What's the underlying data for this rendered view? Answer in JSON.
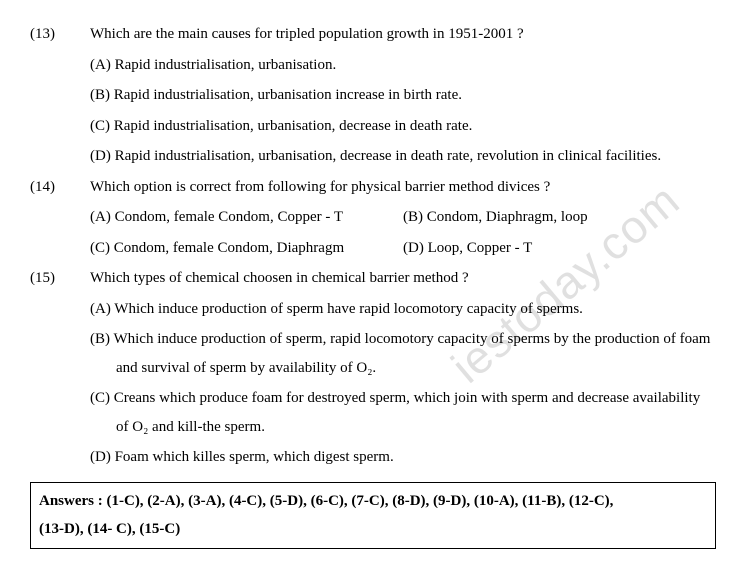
{
  "q13": {
    "num": "(13)",
    "text": "Which are the main causes for tripled population growth in 1951-2001 ?",
    "A": "(A) Rapid industrialisation, urbanisation.",
    "B": "(B) Rapid industrialisation, urbanisation increase in birth rate.",
    "C": "(C) Rapid industrialisation, urbanisation, decrease in death rate.",
    "D": "(D) Rapid industrialisation, urbanisation, decrease in death rate, revolution in clinical facilities."
  },
  "q14": {
    "num": "(14)",
    "text": "Which option is correct from following for physical barrier method divices ?",
    "A": "(A) Condom, female Condom, Copper - T",
    "B": "(B) Condom, Diaphragm, loop",
    "C": "(C) Condom, female Condom, Diaphragm",
    "D": "(D) Loop, Copper - T"
  },
  "q15": {
    "num": "(15)",
    "text": "Which types of chemical choosen in chemical barrier method ?",
    "A": "(A) Which induce production of sperm have rapid locomotory capacity of sperms.",
    "B": "(B) Which induce production of sperm, rapid locomotory capacity of sperms by the production of foam and survival of sperm by availability of O₂.",
    "C": "(C) Creans which produce foam for destroyed sperm, which join with sperm and decrease availability of O₂ and kill-the sperm.",
    "D": "(D) Foam which killes sperm, which digest sperm."
  },
  "answers": {
    "line1": "Answers : (1-C), (2-A), (3-A), (4-C), (5-D), (6-C), (7-C), (8-D), (9-D), (10-A), (11-B), (12-C),",
    "line2": "(13-D), (14- C), (15-C)"
  },
  "watermark": "iestoday.com"
}
